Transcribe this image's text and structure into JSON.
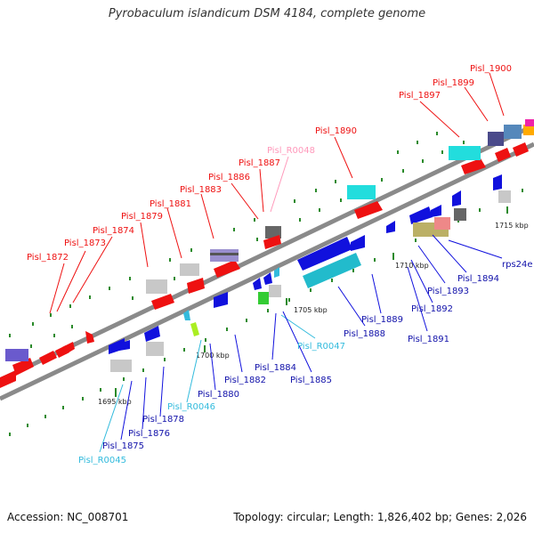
{
  "title": "Pyrobaculum islandicum DSM 4184, complete genome",
  "footer": {
    "accession": "Accession: NC_008701",
    "summary": "Topology: circular; Length: 1,826,402 bp; Genes: 2,026"
  },
  "ticks": [
    "1695 kbp",
    "1700 kbp",
    "1705 kbp",
    "1710 kbp",
    "1715 kbp"
  ],
  "labels_top": [
    "Pisl_1872",
    "Pisl_1873",
    "Pisl_1874",
    "Pisl_1879",
    "Pisl_1881",
    "Pisl_1883",
    "Pisl_1886",
    "Pisl_1887",
    "Pisl_R0048",
    "Pisl_1890",
    "Pisl_1897",
    "Pisl_1899",
    "Pisl_1900"
  ],
  "labels_bottom": [
    "Pisl_R0045",
    "Pisl_1875",
    "Pisl_1876",
    "Pisl_1878",
    "Pisl_R0046",
    "Pisl_1880",
    "Pisl_1882",
    "Pisl_1884",
    "Pisl_R0047",
    "Pisl_1885",
    "Pisl_1888",
    "Pisl_1889",
    "Pisl_1891",
    "Pisl_1892",
    "Pisl_1893",
    "Pisl_1894",
    "rps24e"
  ],
  "colors": {
    "forward_gene": "#ee1111",
    "reverse_gene": "#1111dd",
    "rna": "#33bbdd",
    "pseudo": "#c8c8c8",
    "backbone": "#999999"
  }
}
